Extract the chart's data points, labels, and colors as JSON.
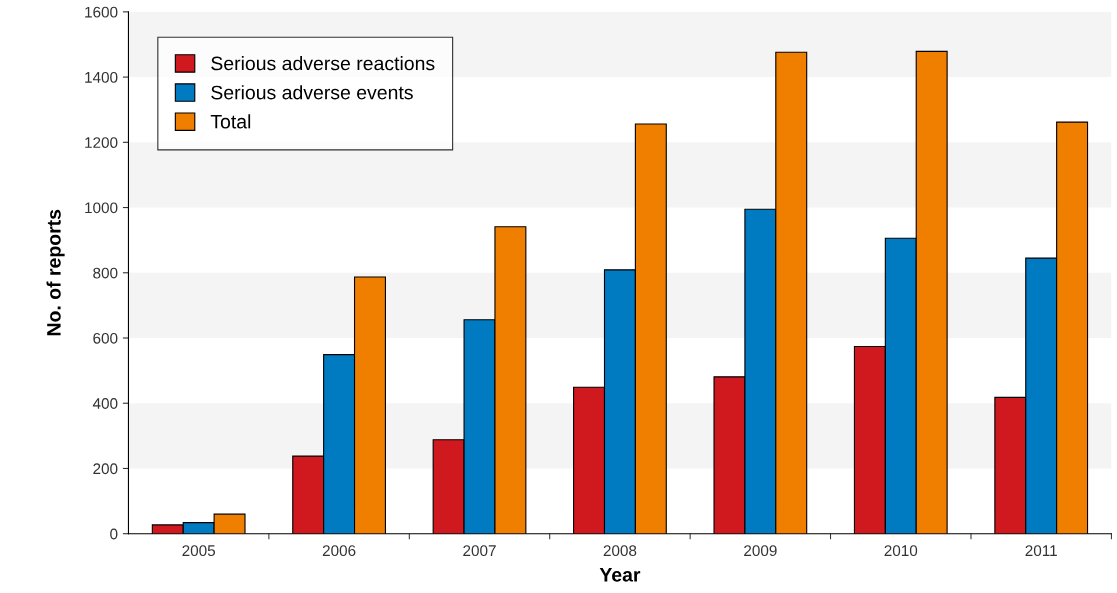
{
  "chart_data": {
    "type": "bar",
    "xlabel": "Year",
    "ylabel": "No. of reports",
    "categories": [
      "2005",
      "2006",
      "2007",
      "2008",
      "2009",
      "2010",
      "2011"
    ],
    "series": [
      {
        "name": "Serious adverse reactions",
        "color": "#d0191e",
        "values": [
          27,
          238,
          288,
          449,
          481,
          574,
          418
        ]
      },
      {
        "name": "Serious adverse events",
        "color": "#007bc2",
        "values": [
          34,
          549,
          656,
          809,
          995,
          906,
          845
        ]
      },
      {
        "name": "Total",
        "color": "#f07f00",
        "values": [
          60,
          787,
          941,
          1256,
          1476,
          1479,
          1262
        ]
      }
    ],
    "ylim": [
      0,
      1600
    ],
    "yticks": [
      0,
      200,
      400,
      600,
      800,
      1000,
      1200,
      1400,
      1600
    ],
    "bands": [
      {
        "axis": "y",
        "from": 200,
        "to": 400,
        "color": "#f4f4f4"
      },
      {
        "axis": "y",
        "from": 600,
        "to": 800,
        "color": "#f4f4f4"
      },
      {
        "axis": "y",
        "from": 1000,
        "to": 1200,
        "color": "#f4f4f4"
      },
      {
        "axis": "y",
        "from": 1400,
        "to": 1600,
        "color": "#f4f4f4"
      }
    ],
    "legend": "top left"
  }
}
